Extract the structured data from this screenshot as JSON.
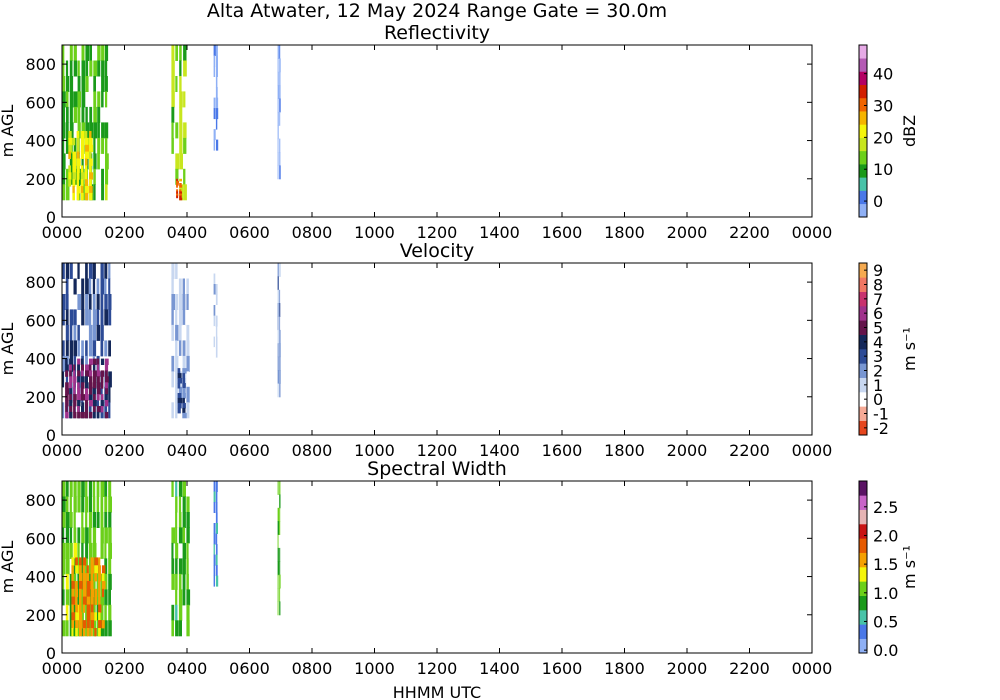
{
  "figure": {
    "title": "Alta Atwater, 12 May 2024 Range Gate = 30.0m",
    "xlabel": "HHMM UTC"
  },
  "colors": {
    "reflectivity": [
      "#8fb0f5",
      "#4a78e8",
      "#48c3a8",
      "#1a9a1a",
      "#6cd01a",
      "#c8e61e",
      "#f5f50a",
      "#f5b400",
      "#f06400",
      "#d21e00",
      "#b40064",
      "#b45ab4",
      "#e6aae6"
    ],
    "velocity": [
      "#e6461e",
      "#f5aa96",
      "#ffffff",
      "#c8d7f0",
      "#7896d2",
      "#2d4b96",
      "#14285a",
      "#64144b",
      "#a0328c",
      "#c8326e",
      "#f07864",
      "#f5aa50"
    ],
    "width": [
      "#8fb0f5",
      "#4a78e8",
      "#48c3a8",
      "#1a9a1a",
      "#6cd01a",
      "#f5f50a",
      "#f5a000",
      "#e65a00",
      "#c81414",
      "#e6b4b4",
      "#c864c8",
      "#5a1464"
    ]
  },
  "chart_data": [
    {
      "type": "heatmap",
      "title": "Reflectivity",
      "ylabel": "m AGL",
      "xticks": [
        "0000",
        "0200",
        "0400",
        "0600",
        "0800",
        "1000",
        "1200",
        "1400",
        "1600",
        "1800",
        "2000",
        "2200",
        "0000"
      ],
      "yticks": [
        "0",
        "200",
        "400",
        "600",
        "800"
      ],
      "xlim": [
        0,
        24
      ],
      "ylim": [
        0,
        900
      ],
      "grid": false,
      "colorbar": {
        "label": "dBZ",
        "ticks": [
          "0",
          "10",
          "20",
          "30",
          "40"
        ],
        "range": [
          -5,
          49
        ]
      },
      "regions": [
        {
          "x": [
            0.0,
            1.5
          ],
          "y": [
            90,
            900
          ],
          "value": 12
        },
        {
          "x": [
            0.2,
            1.0
          ],
          "y": [
            90,
            450
          ],
          "value": 22
        },
        {
          "x": [
            3.5,
            4.0
          ],
          "y": [
            90,
            900
          ],
          "value": 15
        },
        {
          "x": [
            3.65,
            3.85
          ],
          "y": [
            90,
            200
          ],
          "value": 32
        },
        {
          "x": [
            4.85,
            5.0
          ],
          "y": [
            350,
            900
          ],
          "value": -2
        },
        {
          "x": [
            6.9,
            7.0
          ],
          "y": [
            200,
            900
          ],
          "value": -2
        }
      ]
    },
    {
      "type": "heatmap",
      "title": "Velocity",
      "ylabel": "m s⁻¹",
      "yaxis_label": "m AGL",
      "xticks": [
        "0000",
        "0200",
        "0400",
        "0600",
        "0800",
        "1000",
        "1200",
        "1400",
        "1600",
        "1800",
        "2000",
        "2200",
        "0000"
      ],
      "yticks": [
        "0",
        "200",
        "400",
        "600",
        "800"
      ],
      "xlim": [
        0,
        24
      ],
      "ylim": [
        0,
        900
      ],
      "grid": false,
      "colorbar": {
        "label": "m s⁻¹",
        "ticks": [
          "-2",
          "-1",
          "0",
          "1",
          "2",
          "3",
          "4",
          "5",
          "6",
          "7",
          "8",
          "9"
        ],
        "range": [
          -2.5,
          9.5
        ]
      },
      "regions": [
        {
          "x": [
            0.0,
            1.6
          ],
          "y": [
            90,
            900
          ],
          "value": 3
        },
        {
          "x": [
            0.1,
            1.5
          ],
          "y": [
            90,
            400
          ],
          "value": 5
        },
        {
          "x": [
            3.5,
            4.1
          ],
          "y": [
            90,
            900
          ],
          "value": 1
        },
        {
          "x": [
            3.7,
            4.0
          ],
          "y": [
            90,
            350
          ],
          "value": 3
        },
        {
          "x": [
            4.85,
            5.0
          ],
          "y": [
            350,
            900
          ],
          "value": 1
        },
        {
          "x": [
            6.9,
            7.0
          ],
          "y": [
            200,
            900
          ],
          "value": 2
        }
      ]
    },
    {
      "type": "heatmap",
      "title": "Spectral Width",
      "ylabel": "m s⁻¹",
      "yaxis_label": "m AGL",
      "xticks": [
        "0000",
        "0200",
        "0400",
        "0600",
        "0800",
        "1000",
        "1200",
        "1400",
        "1600",
        "1800",
        "2000",
        "2200",
        "0000"
      ],
      "yticks": [
        "0",
        "200",
        "400",
        "600",
        "800"
      ],
      "xlim": [
        0,
        24
      ],
      "ylim": [
        0,
        900
      ],
      "grid": false,
      "colorbar": {
        "label": "m s⁻¹",
        "ticks": [
          "0.0",
          "0.5",
          "1.0",
          "1.5",
          "2.0",
          "2.5"
        ],
        "range": [
          -0.05,
          2.95
        ]
      },
      "regions": [
        {
          "x": [
            0.0,
            1.6
          ],
          "y": [
            90,
            900
          ],
          "value": 1.0
        },
        {
          "x": [
            0.3,
            1.4
          ],
          "y": [
            90,
            500
          ],
          "value": 1.6
        },
        {
          "x": [
            3.5,
            4.1
          ],
          "y": [
            90,
            900
          ],
          "value": 0.9
        },
        {
          "x": [
            4.85,
            5.0
          ],
          "y": [
            350,
            900
          ],
          "value": 0.4
        },
        {
          "x": [
            6.9,
            7.0
          ],
          "y": [
            200,
            900
          ],
          "value": 0.9
        }
      ]
    }
  ]
}
